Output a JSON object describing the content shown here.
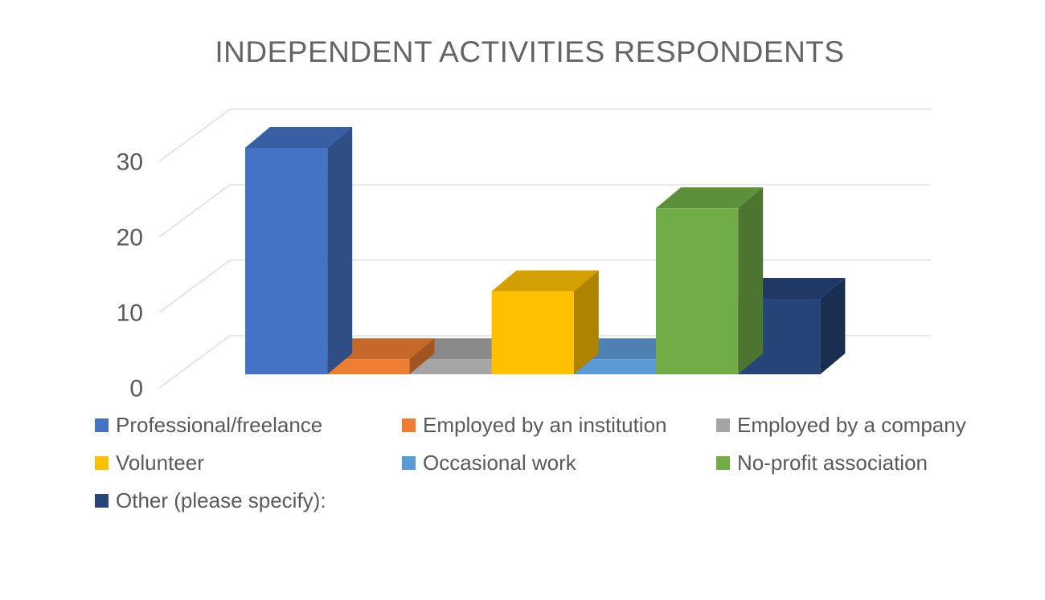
{
  "chart_data": {
    "type": "bar",
    "projection": "3d",
    "title": "INDEPENDENT ACTIVITIES RESPONDENTS",
    "xlabel": "",
    "ylabel": "",
    "categories": [
      "Professional/freelance",
      "Employed by an institution",
      "Employed by a company",
      "Volunteer",
      "Occasional work",
      "No-profit association",
      "Other (please specify):"
    ],
    "values": [
      30,
      2,
      2,
      11,
      2,
      22,
      10
    ],
    "colors": [
      "#4472C4",
      "#ED7D31",
      "#A5A5A5",
      "#FFC000",
      "#5B9BD5",
      "#70AD47",
      "#264478"
    ],
    "yticks": [
      0,
      10,
      20,
      30
    ],
    "ylim": [
      0,
      35
    ],
    "grid": true,
    "legend_position": "bottom"
  },
  "colors": {
    "background": "#FFFFFF",
    "title_text": "#646464",
    "axis_text": "#595959",
    "legend_text": "#595959",
    "gridline": "#D9D9D9"
  }
}
